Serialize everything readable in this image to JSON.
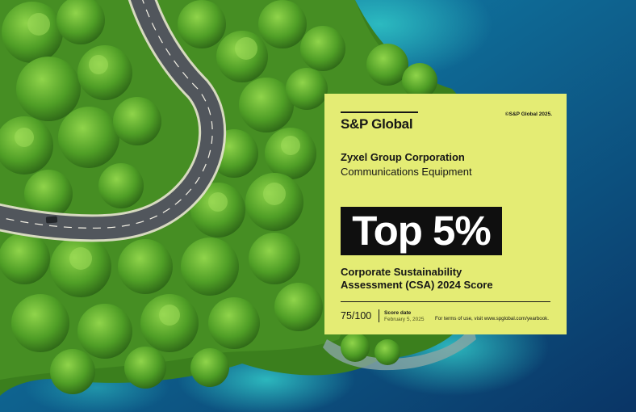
{
  "card": {
    "logo_text": "S&P Global",
    "copyright": "©S&P Global 2025.",
    "company": "Zyxel Group Corporation",
    "industry": "Communications Equipment",
    "ranking": "Top 5%",
    "assessment_line1": "Corporate Sustainability",
    "assessment_line2": "Assessment (CSA) 2024 Score",
    "score": "75/100",
    "score_date_label": "Score date",
    "score_date_value": "February 5, 2025",
    "terms": "For terms of use, visit www.spglobal.com/yearbook."
  },
  "colors": {
    "card_background": "#e4ec74",
    "badge_background": "#0f0f0f",
    "badge_text": "#ffffff",
    "water_deep": "#0b3f73",
    "water_shallow": "#1aa0b3",
    "forest": "#3f8c1f"
  }
}
